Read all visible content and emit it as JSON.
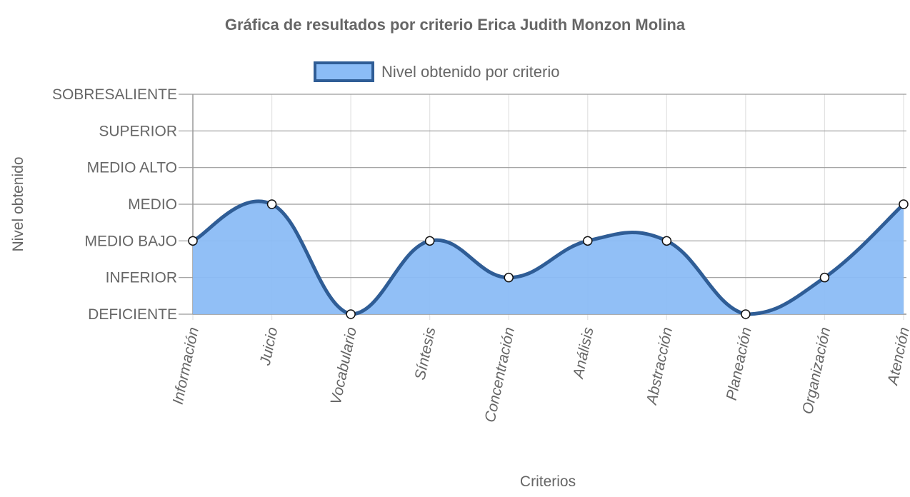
{
  "chart_data": {
    "type": "area",
    "title": "Gráfica de resultados por criterio Erica Judith Monzon Molina",
    "xlabel": "Criterios",
    "ylabel": "Nivel obtenido",
    "legend_position": "top",
    "categories": [
      "Información",
      "Juicio",
      "Vocabulario",
      "Síntesis",
      "Concentración",
      "Análisis",
      "Abstracción",
      "Planeación",
      "Organización",
      "Atención"
    ],
    "y_levels": [
      "DEFICIENTE",
      "INFERIOR",
      "MEDIO BAJO",
      "MEDIO",
      "MEDIO ALTO",
      "SUPERIOR",
      "SOBRESALIENTE"
    ],
    "ylim": [
      0,
      6
    ],
    "grid": true,
    "series": [
      {
        "name": "Nivel obtenido por criterio",
        "values": [
          2,
          3,
          0,
          2,
          1,
          2,
          2,
          0,
          1,
          3
        ],
        "fill_color": "#8bbcf6",
        "line_color": "#2f5d96",
        "point_color": "#ffffff"
      }
    ]
  }
}
